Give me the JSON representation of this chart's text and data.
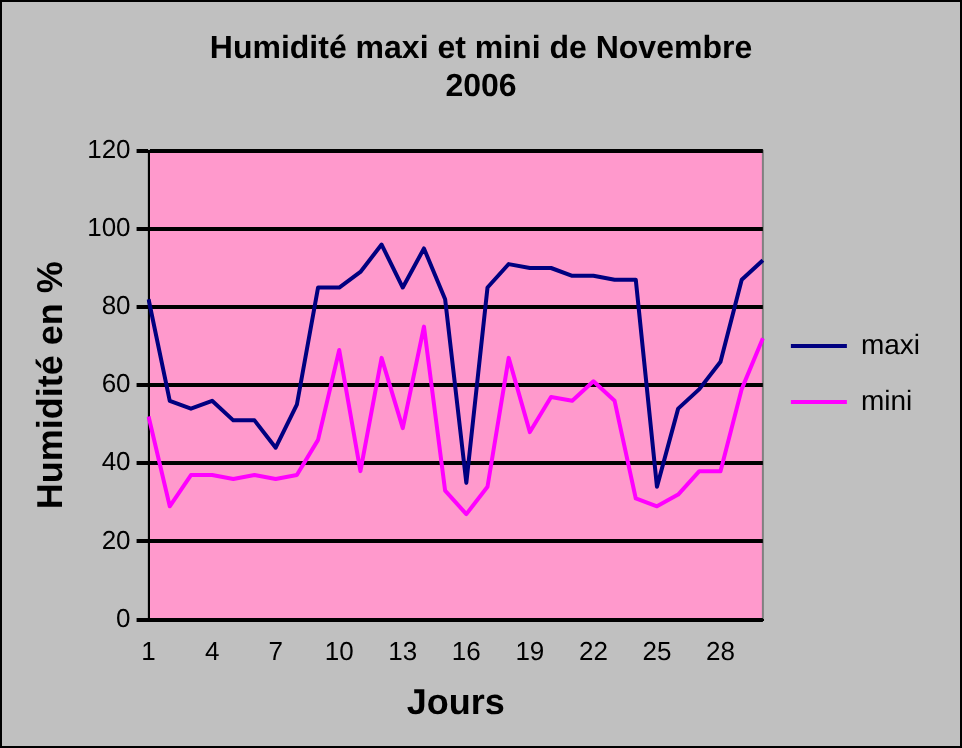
{
  "chart_data": {
    "type": "line",
    "title": "Humidité maxi et mini de Novembre 2006",
    "xlabel": "Jours",
    "ylabel": "Humidité en %",
    "categories": [
      "1",
      null,
      null,
      "4",
      null,
      null,
      "7",
      null,
      null,
      "10",
      null,
      null,
      "13",
      null,
      null,
      "16",
      null,
      null,
      "19",
      null,
      null,
      "22",
      null,
      null,
      "25",
      null,
      null,
      "28",
      null,
      null
    ],
    "series": [
      {
        "name": "maxi",
        "color": "#000080",
        "values": [
          82,
          56,
          54,
          56,
          51,
          51,
          44,
          55,
          85,
          85,
          89,
          96,
          85,
          95,
          82,
          35,
          85,
          91,
          90,
          90,
          88,
          88,
          87,
          87,
          34,
          54,
          59,
          66,
          87,
          92
        ]
      },
      {
        "name": "mini",
        "color": "#ff00ff",
        "values": [
          52,
          29,
          37,
          37,
          36,
          37,
          36,
          37,
          46,
          69,
          38,
          67,
          49,
          75,
          33,
          27,
          34,
          67,
          48,
          57,
          56,
          61,
          56,
          31,
          29,
          32,
          38,
          38,
          59,
          72
        ]
      }
    ],
    "ylim": [
      0,
      120
    ],
    "yticks": [
      0,
      20,
      40,
      60,
      80,
      100,
      120
    ],
    "grid": "y",
    "legend": "right",
    "marker": "none"
  }
}
